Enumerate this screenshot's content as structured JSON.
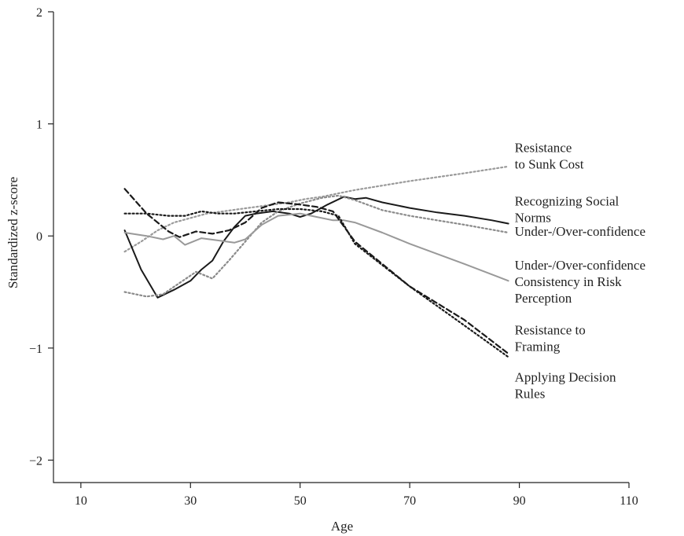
{
  "chart_data": {
    "type": "line",
    "title": "",
    "xlabel": "Age",
    "ylabel": "Standardized z-score",
    "xlim": [
      5,
      110
    ],
    "ylim": [
      -2.2,
      2
    ],
    "xticks": [
      10,
      30,
      50,
      70,
      90,
      110
    ],
    "yticks": [
      -2,
      -1,
      0,
      1,
      2
    ],
    "ytick_labels": [
      "−2",
      "−1",
      "0",
      "1",
      "2"
    ],
    "grid": false,
    "legend": "direct-labels-right",
    "series": [
      {
        "name": "Resistance to Sunk Cost",
        "label_lines": [
          "Resistance",
          "to Sunk Cost"
        ],
        "label_at": [
          89,
          0.75
        ],
        "color": "#9a9a9a",
        "dash": "dotted",
        "x": [
          18,
          21,
          24,
          27,
          30,
          33,
          36,
          39,
          42,
          45,
          48,
          51,
          54,
          57,
          60,
          70,
          80,
          88
        ],
        "y": [
          -0.14,
          -0.05,
          0.05,
          0.12,
          0.16,
          0.2,
          0.22,
          0.24,
          0.26,
          0.28,
          0.3,
          0.33,
          0.35,
          0.38,
          0.41,
          0.49,
          0.56,
          0.62
        ]
      },
      {
        "name": "Recognizing Social Norms",
        "label_lines": [
          "Recognizing Social",
          "Norms"
        ],
        "label_at": [
          89,
          0.27
        ],
        "color": "#1a1a1a",
        "dash": "solid",
        "x": [
          18,
          21,
          24,
          27,
          30,
          32,
          34,
          36,
          38,
          40,
          42,
          45,
          48,
          50,
          52,
          55,
          58,
          60,
          62,
          65,
          70,
          75,
          80,
          85,
          88
        ],
        "y": [
          0.05,
          -0.3,
          -0.55,
          -0.48,
          -0.4,
          -0.3,
          -0.22,
          -0.05,
          0.08,
          0.18,
          0.2,
          0.22,
          0.2,
          0.17,
          0.2,
          0.28,
          0.35,
          0.33,
          0.34,
          0.3,
          0.25,
          0.21,
          0.18,
          0.14,
          0.11
        ]
      },
      {
        "name": "Under-/Over-confidence",
        "label_lines": [
          "Under-/Over-confidence"
        ],
        "label_at": [
          89,
          0.0
        ],
        "color": "#8a8a8a",
        "dash": "dotted",
        "x": [
          18,
          22,
          25,
          28,
          31,
          34,
          37,
          40,
          43,
          46,
          50,
          54,
          57,
          60,
          65,
          70,
          80,
          88
        ],
        "y": [
          -0.5,
          -0.54,
          -0.52,
          -0.42,
          -0.32,
          -0.38,
          -0.22,
          -0.05,
          0.12,
          0.22,
          0.29,
          0.34,
          0.36,
          0.32,
          0.23,
          0.18,
          0.1,
          0.03
        ]
      },
      {
        "name": "Under-/Over-confidence Consistency in Risk Perception",
        "label_lines": [
          "Under-/Over-confidence",
          "Consistency in Risk",
          "Perception"
        ],
        "label_at": [
          89,
          -0.3
        ],
        "color": "#999999",
        "dash": "solid",
        "x": [
          18,
          22,
          25,
          27,
          29,
          32,
          35,
          38,
          40,
          43,
          46,
          50,
          53,
          56,
          58,
          60,
          65,
          70,
          80,
          88
        ],
        "y": [
          0.03,
          0.0,
          -0.03,
          0.0,
          -0.08,
          -0.02,
          -0.04,
          -0.06,
          -0.03,
          0.1,
          0.18,
          0.2,
          0.17,
          0.14,
          0.14,
          0.12,
          0.03,
          -0.07,
          -0.25,
          -0.4
        ]
      },
      {
        "name": "Resistance to Framing",
        "label_lines": [
          "Resistance to",
          "Framing"
        ],
        "label_at": [
          89,
          -0.88
        ],
        "color": "#1a1a1a",
        "dash": "dashed",
        "x": [
          18,
          22,
          26,
          28,
          31,
          34,
          37,
          40,
          43,
          46,
          50,
          53,
          56,
          60,
          70,
          80,
          88
        ],
        "y": [
          0.42,
          0.2,
          0.04,
          -0.01,
          0.04,
          0.02,
          0.05,
          0.12,
          0.25,
          0.3,
          0.28,
          0.26,
          0.22,
          -0.05,
          -0.45,
          -0.75,
          -1.05
        ]
      },
      {
        "name": "Applying Decision Rules",
        "label_lines": [
          "Applying Decision",
          "Rules"
        ],
        "label_at": [
          89,
          -1.3
        ],
        "color": "#1a1a1a",
        "dash": "dotted",
        "x": [
          18,
          22,
          26,
          29,
          32,
          35,
          38,
          42,
          46,
          50,
          54,
          57,
          60,
          70,
          80,
          88
        ],
        "y": [
          0.2,
          0.2,
          0.18,
          0.18,
          0.22,
          0.2,
          0.2,
          0.22,
          0.24,
          0.24,
          0.22,
          0.18,
          -0.07,
          -0.45,
          -0.8,
          -1.08
        ]
      }
    ]
  }
}
